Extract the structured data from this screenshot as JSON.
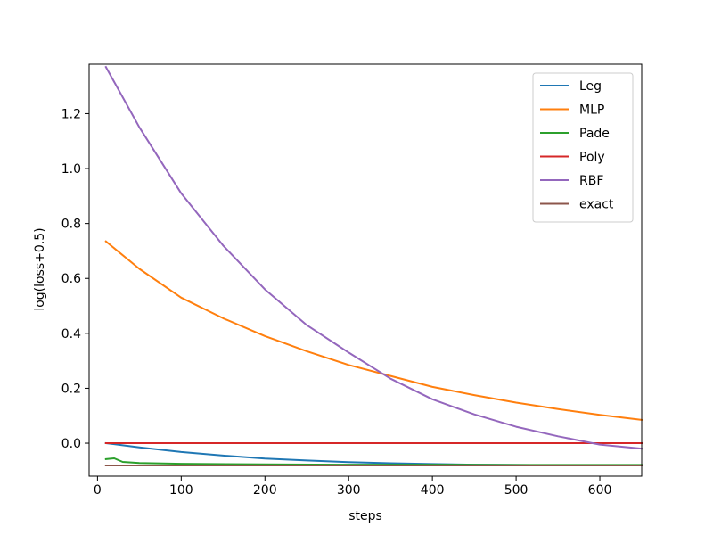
{
  "chart_data": {
    "type": "line",
    "title": "",
    "xlabel": "steps",
    "ylabel": "log(loss+0.5)",
    "xlim": [
      -10,
      650
    ],
    "ylim": [
      -0.12,
      1.38
    ],
    "xticks": [
      "0",
      "100",
      "200",
      "300",
      "400",
      "500",
      "600"
    ],
    "yticks": [
      "0.0",
      "0.2",
      "0.4",
      "0.6",
      "0.8",
      "1.0",
      "1.2"
    ],
    "grid": false,
    "legend_position": "top-right",
    "series": [
      {
        "name": "Leg",
        "color": "#1f77b4",
        "x": [
          10,
          50,
          100,
          150,
          200,
          250,
          300,
          350,
          400,
          450,
          500,
          550,
          600,
          650
        ],
        "y": [
          0.0,
          -0.015,
          -0.032,
          -0.045,
          -0.056,
          -0.063,
          -0.069,
          -0.073,
          -0.076,
          -0.078,
          -0.079,
          -0.08,
          -0.08,
          -0.08
        ]
      },
      {
        "name": "MLP",
        "color": "#ff7f0e",
        "x": [
          10,
          50,
          100,
          150,
          200,
          250,
          300,
          350,
          400,
          450,
          500,
          550,
          600,
          650
        ],
        "y": [
          0.735,
          0.635,
          0.53,
          0.455,
          0.39,
          0.335,
          0.285,
          0.245,
          0.205,
          0.175,
          0.148,
          0.124,
          0.103,
          0.085
        ]
      },
      {
        "name": "Pade",
        "color": "#2ca02c",
        "x": [
          10,
          20,
          30,
          50,
          100,
          200,
          300,
          400,
          500,
          600,
          650
        ],
        "y": [
          -0.058,
          -0.055,
          -0.068,
          -0.072,
          -0.075,
          -0.077,
          -0.078,
          -0.078,
          -0.079,
          -0.079,
          -0.079
        ]
      },
      {
        "name": "Poly",
        "color": "#d62728",
        "x": [
          10,
          650
        ],
        "y": [
          0.0,
          0.0
        ]
      },
      {
        "name": "RBF",
        "color": "#9467bd",
        "x": [
          10,
          50,
          100,
          150,
          200,
          250,
          300,
          350,
          400,
          450,
          500,
          550,
          600,
          650
        ],
        "y": [
          1.37,
          1.15,
          0.91,
          0.72,
          0.56,
          0.43,
          0.33,
          0.235,
          0.16,
          0.105,
          0.06,
          0.025,
          -0.005,
          -0.02
        ]
      },
      {
        "name": "exact",
        "color": "#8c564b",
        "x": [
          10,
          650
        ],
        "y": [
          -0.081,
          -0.081
        ]
      }
    ]
  }
}
